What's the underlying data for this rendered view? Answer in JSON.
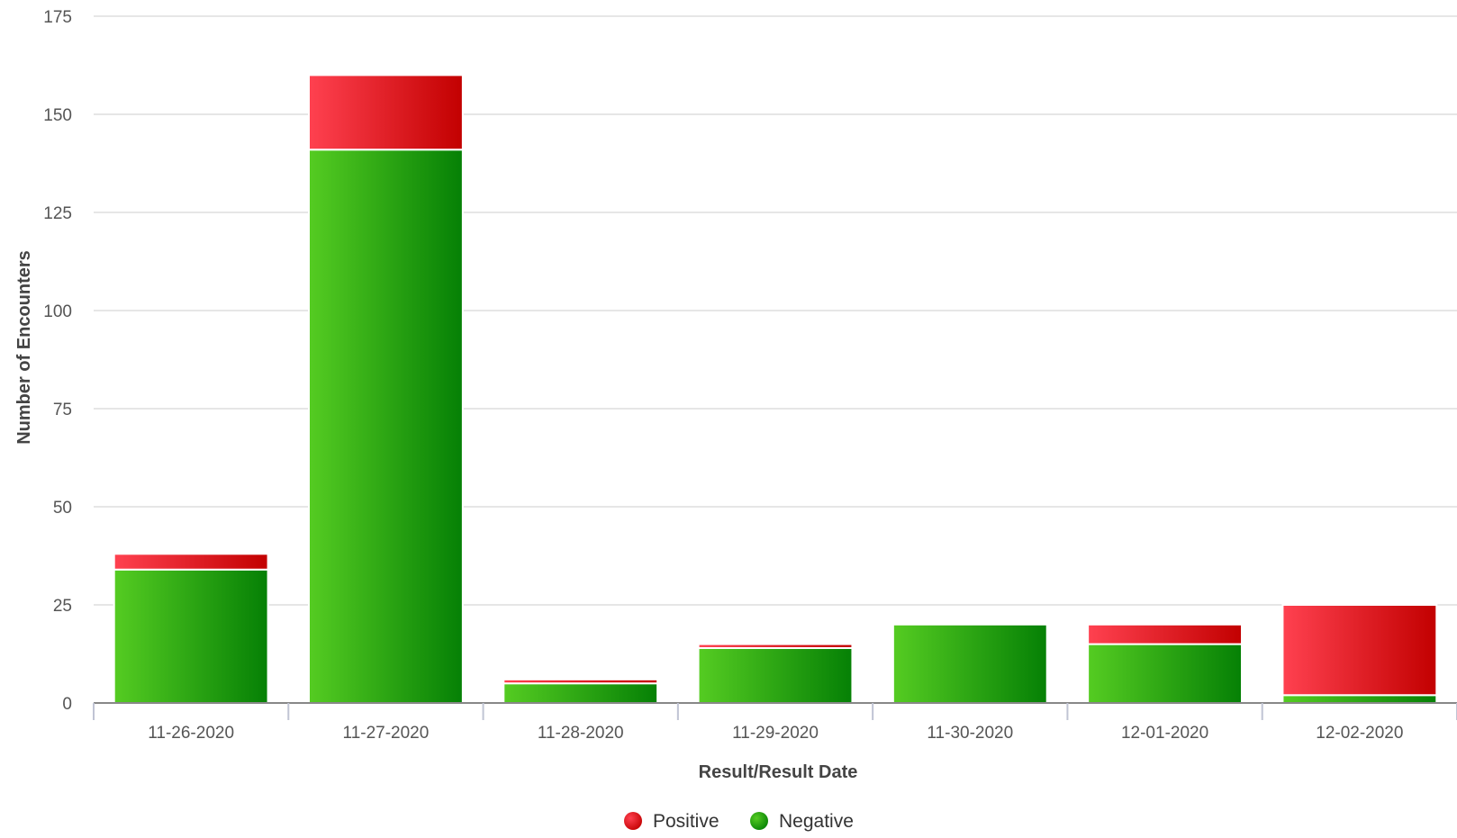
{
  "chart_data": {
    "type": "bar",
    "stacked": true,
    "categories": [
      "11-26-2020",
      "11-27-2020",
      "11-28-2020",
      "11-29-2020",
      "11-30-2020",
      "12-01-2020",
      "12-02-2020"
    ],
    "series": [
      {
        "name": "Negative",
        "color": "#1f9a12",
        "values": [
          34,
          141,
          5,
          14,
          20,
          15,
          2
        ]
      },
      {
        "name": "Positive",
        "color": "#e62a2e",
        "values": [
          4,
          19,
          1,
          1,
          0,
          5,
          23
        ]
      }
    ],
    "xlabel": "Result/Result Date",
    "ylabel": "Number of Encounters",
    "ylim": [
      0,
      175
    ],
    "yticks": [
      0,
      25,
      50,
      75,
      100,
      125,
      150,
      175
    ],
    "grid": true,
    "legend": {
      "placement": "bottom-center",
      "order": [
        "Positive",
        "Negative"
      ]
    }
  }
}
